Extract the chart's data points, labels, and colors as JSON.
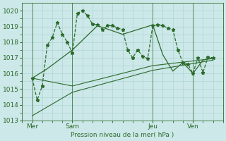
{
  "bg_color": "#cce8e8",
  "grid_color": "#a8d0d0",
  "line_color": "#2d6b2d",
  "ylabel": "Pression niveau de la mer( hPa )",
  "ylim": [
    1013,
    1020.5
  ],
  "yticks": [
    1013,
    1014,
    1015,
    1016,
    1017,
    1018,
    1019,
    1020
  ],
  "xtick_labels": [
    "Mer",
    "Sam",
    "Jeu",
    "Ven"
  ],
  "xtick_positions": [
    2,
    10,
    26,
    34
  ],
  "vline_positions": [
    2,
    10,
    26,
    34
  ],
  "xlim": [
    0,
    40
  ],
  "series0_x": [
    2,
    3,
    4,
    5,
    6,
    7,
    8,
    9,
    10,
    11,
    12,
    13,
    14,
    15,
    16,
    17,
    18,
    19,
    20,
    21,
    22,
    23,
    24,
    25,
    26,
    27,
    28,
    29,
    30,
    31,
    32,
    33,
    34,
    35,
    36,
    37,
    38
  ],
  "series0_y": [
    1015.7,
    1014.3,
    1015.2,
    1017.8,
    1018.3,
    1019.25,
    1018.5,
    1018.0,
    1017.3,
    1019.85,
    1020.0,
    1019.7,
    1019.15,
    1019.1,
    1018.8,
    1019.05,
    1019.05,
    1018.9,
    1018.8,
    1017.5,
    1017.0,
    1017.5,
    1017.1,
    1016.95,
    1019.05,
    1019.1,
    1019.05,
    1018.9,
    1018.8,
    1017.5,
    1016.7,
    1016.6,
    1016.0,
    1017.0,
    1016.05,
    1017.05,
    1017.0
  ],
  "series1_x": [
    2,
    10,
    26,
    38
  ],
  "series1_y": [
    1015.7,
    1015.2,
    1016.5,
    1016.95
  ],
  "series2_x": [
    2,
    10,
    26,
    38
  ],
  "series2_y": [
    1013.3,
    1014.8,
    1016.2,
    1016.85
  ],
  "series3_x": [
    2,
    5,
    10,
    15,
    20,
    26,
    28,
    30,
    32,
    34,
    36,
    38
  ],
  "series3_y": [
    1015.7,
    1016.3,
    1017.5,
    1019.05,
    1018.5,
    1019.1,
    1017.2,
    1016.15,
    1016.7,
    1016.0,
    1016.85,
    1017.0
  ]
}
